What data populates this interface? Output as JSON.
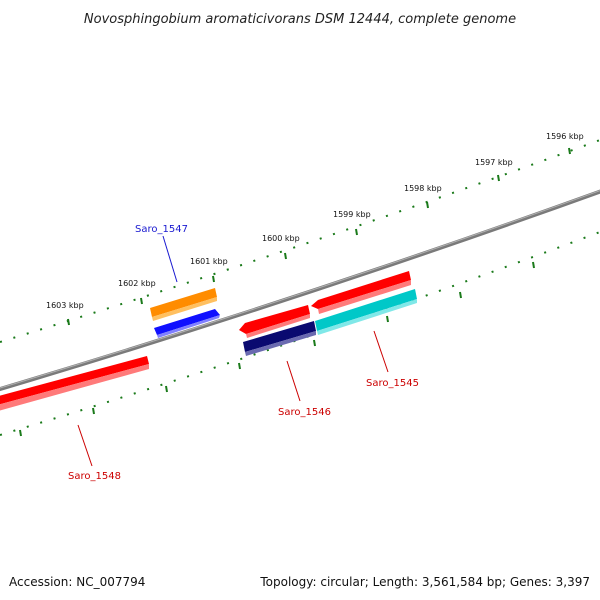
{
  "title": "Novosphingobium aromaticivorans DSM 12444, complete genome",
  "footer": {
    "accession": "Accession: NC_007794",
    "topology": "Topology: circular; Length: 3,561,584 bp; Genes: 3,397"
  },
  "ticks": [
    "1603 kbp",
    "1602 kbp",
    "1601 kbp",
    "1600 kbp",
    "1599 kbp",
    "1598 kbp",
    "1597 kbp",
    "1596 kbp"
  ],
  "genes": [
    {
      "name": "Saro_1547",
      "color": "#1a1ad0"
    },
    {
      "name": "Saro_1546",
      "color": "#cc0000"
    },
    {
      "name": "Saro_1545",
      "color": "#cc0000"
    },
    {
      "name": "Saro_1548",
      "color": "#cc0000"
    }
  ],
  "colors": {
    "backbone": "#808080",
    "tick": "#1a7a1a",
    "red": "#ff0000",
    "orange": "#ff8c00",
    "blue": "#1010ff",
    "navy": "#0a0a70",
    "cyan": "#00c8c8"
  }
}
